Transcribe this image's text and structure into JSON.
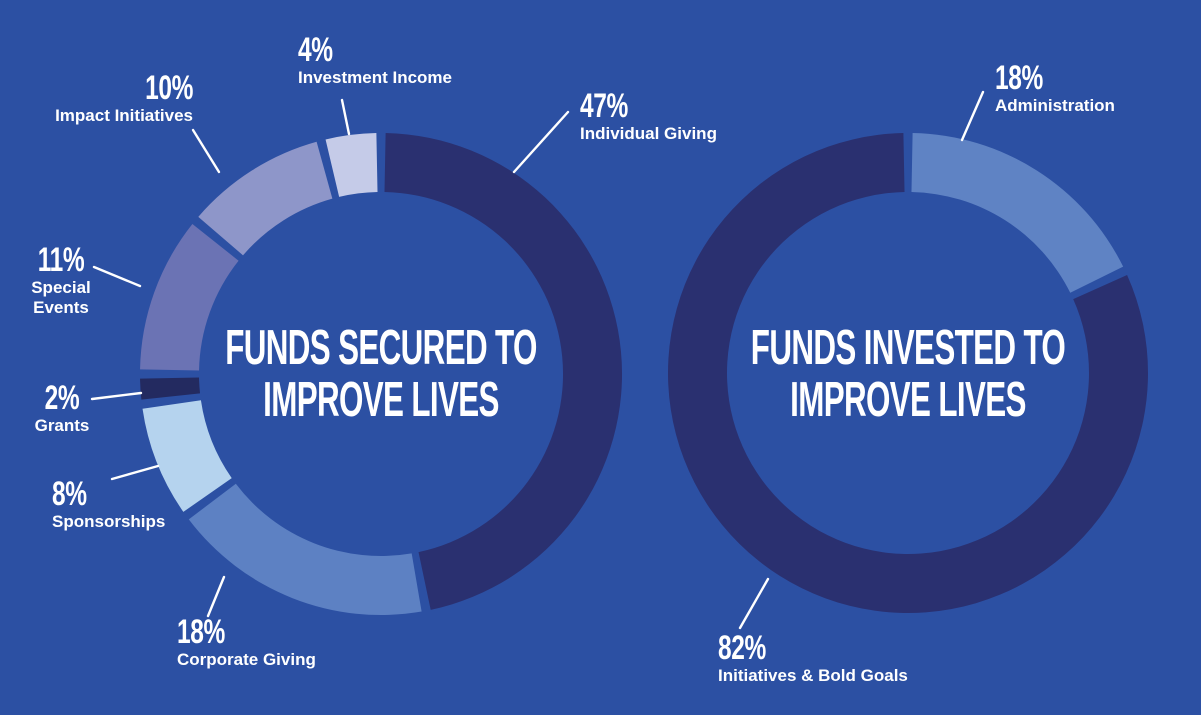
{
  "background_color": "#2c50a3",
  "text_color": "#ffffff",
  "leader_line_color": "#ffffff",
  "chart_data": [
    {
      "type": "pie",
      "variant": "donut",
      "title_lines": [
        "FUNDS SECURED TO",
        "IMPROVE LIVES"
      ],
      "clockwise": true,
      "start_angle_deg": 0,
      "slices": [
        {
          "label": "Individual Giving",
          "value": 47,
          "pct_text": "47%",
          "color": "#2a3070"
        },
        {
          "label": "Corporate Giving",
          "value": 18,
          "pct_text": "18%",
          "color": "#5d81c3"
        },
        {
          "label": "Sponsorships",
          "value": 8,
          "pct_text": "8%",
          "color": "#b5d3ee"
        },
        {
          "label": "Grants",
          "value": 2,
          "pct_text": "2%",
          "color": "#232a60"
        },
        {
          "label": "Special Events",
          "value": 11,
          "pct_text": "11%",
          "color": "#6b73b4"
        },
        {
          "label": "Impact Initiatives",
          "value": 10,
          "pct_text": "10%",
          "color": "#8e96c9"
        },
        {
          "label": "Investment Income",
          "value": 4,
          "pct_text": "4%",
          "color": "#c5cbe8"
        }
      ]
    },
    {
      "type": "pie",
      "variant": "donut",
      "title_lines": [
        "FUNDS INVESTED TO",
        "IMPROVE LIVES"
      ],
      "clockwise": true,
      "start_angle_deg": 0,
      "slices": [
        {
          "label": "Administration",
          "value": 18,
          "pct_text": "18%",
          "color": "#5f83c4"
        },
        {
          "label": "Initiatives & Bold Goals",
          "value": 82,
          "pct_text": "82%",
          "color": "#2a3070"
        }
      ]
    }
  ]
}
